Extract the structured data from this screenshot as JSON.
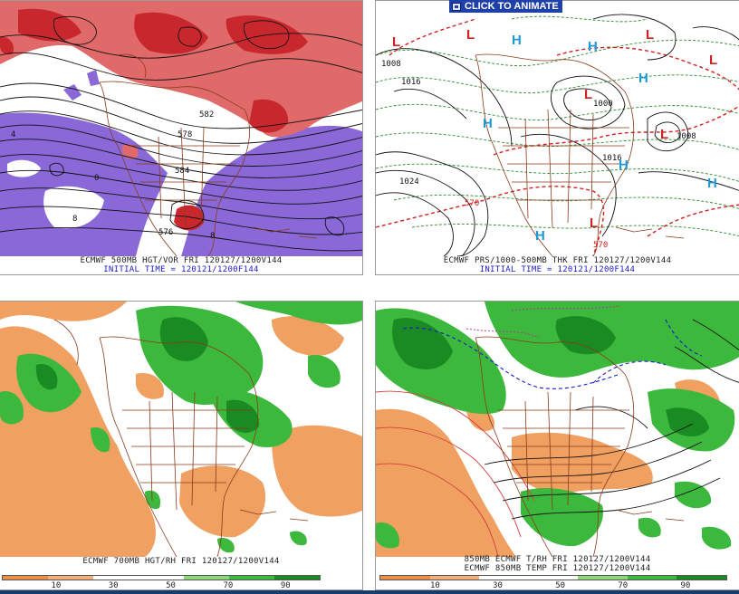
{
  "header": {
    "animate_label": "CLICK TO ANIMATE"
  },
  "panels": {
    "top_left": {
      "caption_line1": "ECMWF 500MB HGT/VOR FRI 120127/1200V144",
      "caption_line2": "INITIAL TIME = 120121/1200F144",
      "contour_labels": [
        "576",
        "584",
        "578",
        "582",
        "0",
        "8",
        "4",
        "8"
      ],
      "colors": {
        "vorticity_high": "#c8282d",
        "vorticity_mid": "#e06a6a",
        "vorticity_low": "#8a68d8",
        "contour": "#111111",
        "coast": "#8b3a1a"
      }
    },
    "top_right": {
      "caption_line1": "ECMWF PRS/1000-500MB THK FRI 120127/1200V144",
      "caption_line2": "INITIAL TIME = 120121/1200F144",
      "contour_labels": [
        "1000",
        "1024",
        "1016",
        "1008",
        "570",
        "570",
        "1008",
        "1016"
      ],
      "pressure_centers": [
        {
          "type": "L",
          "color": "#d42020"
        },
        {
          "type": "L",
          "color": "#d42020"
        },
        {
          "type": "L",
          "color": "#d42020"
        },
        {
          "type": "L",
          "color": "#d42020"
        },
        {
          "type": "L",
          "color": "#d42020"
        },
        {
          "type": "L",
          "color": "#d42020"
        },
        {
          "type": "L",
          "color": "#d42020"
        },
        {
          "type": "H",
          "color": "#1e9ad6"
        },
        {
          "type": "H",
          "color": "#1e9ad6"
        },
        {
          "type": "H",
          "color": "#1e9ad6"
        },
        {
          "type": "H",
          "color": "#1e9ad6"
        },
        {
          "type": "H",
          "color": "#1e9ad6"
        },
        {
          "type": "H",
          "color": "#1e9ad6"
        },
        {
          "type": "H",
          "color": "#1e9ad6"
        }
      ]
    },
    "bottom_left": {
      "caption_line1": "ECMWF 700MB HGT/RH FRI 120127/1200V144",
      "scale_ticks": [
        "10",
        "30",
        "50",
        "70",
        "90"
      ],
      "scale_colors": [
        "#e8904a",
        "#f4b07a",
        "#ffffff",
        "#ffffff",
        "#8fd87a",
        "#3cb83c",
        "#1a8a22"
      ],
      "colors": {
        "dry": "#f0a060",
        "moist": "#3cb83c",
        "very_moist": "#1a8a22"
      }
    },
    "bottom_right": {
      "caption_line1": "850MB ECMWF T/RH FRI 120127/1200V144",
      "caption_line2": "ECMWF 850MB TEMP FRI 120127/1200V144",
      "scale_ticks": [
        "10",
        "30",
        "50",
        "70",
        "90"
      ],
      "scale_colors": [
        "#e8904a",
        "#f4b07a",
        "#ffffff",
        "#ffffff",
        "#8fd87a",
        "#3cb83c",
        "#1a8a22"
      ]
    }
  }
}
